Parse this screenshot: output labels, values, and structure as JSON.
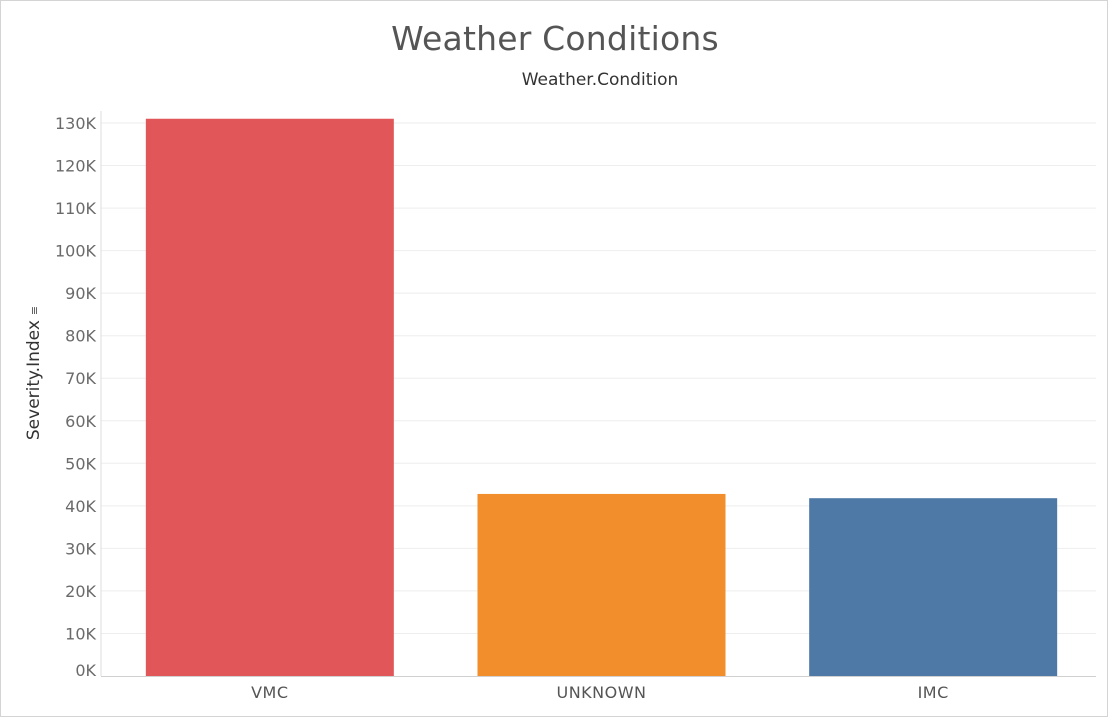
{
  "chart_data": {
    "type": "bar",
    "title": "Weather Conditions",
    "xlabel": "Weather.Condition",
    "ylabel": "Severity.Index",
    "categories": [
      "VMC",
      "UNKNOWN",
      "IMC"
    ],
    "values": [
      131000,
      42800,
      41800
    ],
    "colors": [
      "#e15759",
      "#f28e2b",
      "#4e79a7"
    ],
    "ylim": [
      0,
      130000
    ],
    "yticks": [
      0,
      10000,
      20000,
      30000,
      40000,
      50000,
      60000,
      70000,
      80000,
      90000,
      100000,
      110000,
      120000,
      130000
    ],
    "ytick_labels": [
      "0K",
      "10K",
      "20K",
      "30K",
      "40K",
      "50K",
      "60K",
      "70K",
      "80K",
      "90K",
      "100K",
      "110K",
      "120K",
      "130K"
    ],
    "grid": true,
    "legend": "none",
    "sort_icon": "sort-descending-icon"
  }
}
